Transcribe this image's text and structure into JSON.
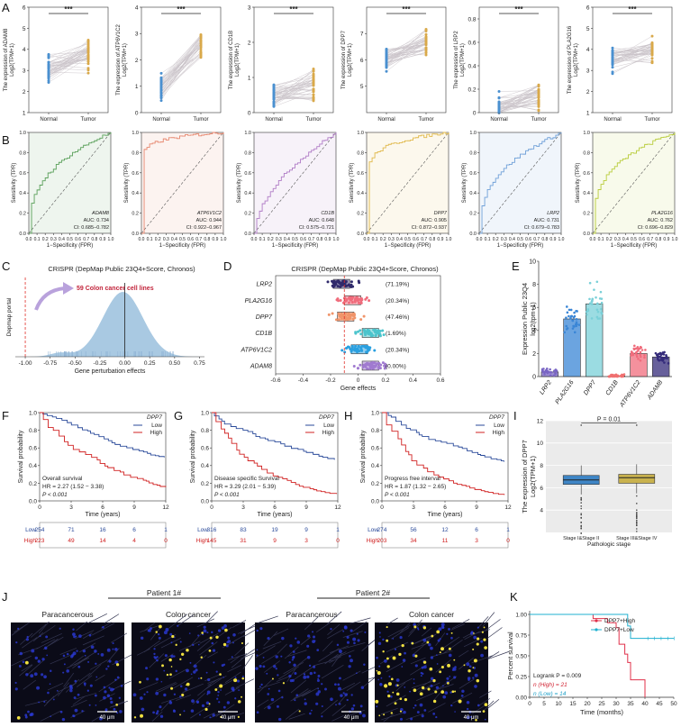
{
  "panels": {
    "a": "A",
    "b": "B",
    "c": "C",
    "d": "D",
    "e": "E",
    "f": "F",
    "g": "G",
    "h": "H",
    "i": "I",
    "j": "J",
    "k": "K"
  },
  "paired_genes": [
    "ADAM8",
    "ATP6V1C2",
    "CD1B",
    "DPP7",
    "LRP2",
    "PLA2G16"
  ],
  "text": {
    "expr_prefix": "The expression of",
    "log_tpm": "Log2(TPM+1)",
    "normal": "Normal",
    "tumor": "Tumor",
    "stars": "***",
    "sensitivity": "Sensitivity (TPR)",
    "fpr": "1−Specificity (FPR)",
    "crispr_title": "CRISPR (DepMap Public 23Q4+Score, Chronos)",
    "cell_lines": "59 Colon cancer cell lines",
    "depmap_portal": "Depmap portal",
    "gene_perturbation": "Gene perturbation effects",
    "gene_effects": "Gene effects",
    "expression_public": "Expression Public 23Q4",
    "log2tpm": "log2(tpm+1)",
    "survival_prob": "Survival probability",
    "time_years": "Time (years)",
    "dpp7": "DPP7",
    "low": "Low",
    "high": "High",
    "i_ylabel_1": "The expression of DPP7",
    "i_ylabel_2": "Log2(TPM+1)",
    "pathologic_stage": "Pathologic stage",
    "i_pvalue": "P = 0.01",
    "patient1": "Patient 1#",
    "patient2": "Patient 2#",
    "paracancerous": "Paracancerous",
    "colon_cancer": "Colon cancer",
    "scale_bar": "40 μm",
    "percent_survival": "Percent survival",
    "time_months": "Time (months)",
    "k_legend_high": "DPP7+High",
    "k_legend_low": "DPP7+Low",
    "k_logrank": "Logrank P = 0.009",
    "k_n_high": "n (High) = 21",
    "k_n_low": "n (Low) = 14"
  },
  "roc": [
    {
      "gene": "ADAM8",
      "auc": "AUC: 0.734",
      "ci": "CI: 0.685−0.782",
      "color": "#5aa05a"
    },
    {
      "gene": "ATP6V1C2",
      "auc": "AUC: 0.944",
      "ci": "CI: 0.922−0.967",
      "color": "#e6866e"
    },
    {
      "gene": "CD1B",
      "auc": "AUC: 0.648",
      "ci": "CI: 0.575−0.721",
      "color": "#b07cc6"
    },
    {
      "gene": "DPP7",
      "auc": "AUC: 0.905",
      "ci": "CI: 0.872−0.937",
      "color": "#e0b84a"
    },
    {
      "gene": "LRP2",
      "auc": "AUC: 0.731",
      "ci": "CI: 0.679−0.783",
      "color": "#6fa0d8"
    },
    {
      "gene": "PLA2G16",
      "auc": "AUC: 0.762",
      "ci": "CI: 0.696−0.829",
      "color": "#b8cc3a"
    }
  ],
  "d_rows": [
    {
      "gene": "LRP2",
      "pct": "(71.19%)",
      "color": "#2f2a6b"
    },
    {
      "gene": "PLA2G16",
      "pct": "(20.34%)",
      "color": "#f06c7c"
    },
    {
      "gene": "DPP7",
      "pct": "(47.46%)",
      "color": "#f0946a"
    },
    {
      "gene": "CD1B",
      "pct": "(1.69%)",
      "color": "#4bc4cc"
    },
    {
      "gene": "ATP6V1C2",
      "pct": "(20.34%)",
      "color": "#2aa0e0"
    },
    {
      "gene": "ADAM8",
      "pct": "(0.00%)",
      "color": "#a07ad0"
    }
  ],
  "survival": [
    {
      "panel": "F",
      "endpoint": "Overall survival",
      "hr": "HR = 2.27 (1.52 − 3.38)",
      "p": "P < 0.001",
      "low": [
        "254",
        "71",
        "16",
        "6",
        "1"
      ],
      "high": [
        "223",
        "49",
        "14",
        "4",
        "0"
      ]
    },
    {
      "panel": "G",
      "endpoint": "Disease specific Survival",
      "hr": "HR = 3.29 (2.01 − 5.39)",
      "p": "P < 0.001",
      "low": [
        "316",
        "83",
        "19",
        "9",
        "1"
      ],
      "high": [
        "145",
        "31",
        "9",
        "3",
        "0"
      ]
    },
    {
      "panel": "H",
      "endpoint": "Progress free interval",
      "hr": "HR = 1.87 (1.32 − 2.65)",
      "p": "P < 0.001",
      "low": [
        "274",
        "56",
        "12",
        "6",
        "1"
      ],
      "high": [
        "203",
        "34",
        "11",
        "3",
        "0"
      ]
    }
  ],
  "i_stages": [
    "Stage I&Stage II",
    "Stage III&Stage IV"
  ],
  "chart_data": [
    {
      "type": "scatter",
      "panel": "A",
      "title": "Paired expression Normal vs Tumor",
      "genes": [
        "ADAM8",
        "ATP6V1C2",
        "CD1B",
        "DPP7",
        "LRP2",
        "PLA2G16"
      ],
      "ylim": [
        [
          1,
          6
        ],
        [
          0,
          4
        ],
        [
          0,
          3
        ],
        [
          4,
          8
        ],
        [
          0,
          0.9
        ],
        [
          1,
          6
        ]
      ],
      "yticks": [
        [
          1,
          2,
          3,
          4,
          5,
          6
        ],
        [
          0,
          1,
          2,
          3,
          4
        ],
        [
          0,
          1,
          2,
          3
        ],
        [
          5,
          6,
          7
        ],
        [
          0,
          0.2,
          0.4,
          0.6,
          0.8
        ],
        [
          1,
          2,
          3,
          4,
          5,
          6
        ]
      ],
      "normal_center": [
        3.0,
        1.0,
        0.5,
        6.0,
        0.05,
        3.5
      ],
      "tumor_center": [
        3.8,
        2.5,
        0.8,
        6.6,
        0.15,
        3.9
      ]
    },
    {
      "type": "line",
      "panel": "B",
      "xlim": [
        0,
        1
      ],
      "ylim": [
        0,
        1
      ],
      "xticks": [
        0.0,
        0.1,
        0.2,
        0.3,
        0.4,
        0.5,
        0.6,
        0.7,
        0.8,
        0.9,
        1.0
      ],
      "yticks": [
        0.0,
        0.2,
        0.4,
        0.6,
        0.8,
        1.0
      ],
      "auc": [
        0.734,
        0.944,
        0.648,
        0.905,
        0.731,
        0.762
      ]
    },
    {
      "type": "area",
      "panel": "C",
      "xlim": [
        -1.1,
        0.8
      ],
      "xticks": [
        -1.0,
        -0.75,
        -0.5,
        -0.25,
        0.0,
        0.25,
        0.5,
        0.75
      ],
      "threshold": -1.0
    },
    {
      "type": "scatter",
      "panel": "D",
      "xlim": [
        -0.6,
        0.6
      ],
      "xticks": [
        -0.6,
        -0.4,
        -0.2,
        0,
        0.2,
        0.4,
        0.6
      ],
      "threshold": -0.1,
      "medians": [
        -0.12,
        -0.04,
        -0.09,
        0.09,
        0.01,
        0.09
      ]
    },
    {
      "type": "bar",
      "panel": "E",
      "categories": [
        "LRP2",
        "PLA2G16",
        "DPP7",
        "CD1B",
        "ATP6V1C2",
        "ADAM8"
      ],
      "values": [
        0.4,
        5.0,
        6.3,
        0.05,
        2.0,
        1.7
      ],
      "ylim": [
        0,
        10
      ],
      "yticks": [
        0,
        2,
        4,
        6,
        8,
        10
      ],
      "colors": [
        "#7a66c4",
        "#3a86d6",
        "#7ad0d8",
        "#f07070",
        "#f06c7c",
        "#342b7a"
      ]
    },
    {
      "type": "line",
      "panel": "F-H",
      "xlim": [
        0,
        12
      ],
      "xticks": [
        0,
        3,
        6,
        9,
        12
      ],
      "ylim": [
        0,
        1
      ],
      "yticks": [
        0.0,
        0.2,
        0.4,
        0.6,
        0.8,
        1.0
      ],
      "series": [
        {
          "name": "Low",
          "color": "#2a4a9a"
        },
        {
          "name": "High",
          "color": "#d02020"
        }
      ]
    },
    {
      "type": "bar",
      "panel": "I",
      "categories": [
        "Stage I&Stage II",
        "Stage III&Stage IV"
      ],
      "medians": [
        6.7,
        6.9
      ],
      "q1": [
        6.3,
        6.4
      ],
      "q3": [
        7.1,
        7.2
      ],
      "ylim": [
        2,
        12
      ],
      "yticks": [
        4,
        6,
        8,
        10,
        12
      ],
      "colors": [
        "#3f86c6",
        "#c9b24e"
      ]
    },
    {
      "type": "line",
      "panel": "K",
      "xlim": [
        0,
        50
      ],
      "xticks": [
        0,
        5,
        10,
        15,
        20,
        25,
        30,
        35,
        40,
        45,
        50
      ],
      "ylim": [
        0,
        1
      ],
      "yticks": [
        0.0,
        0.25,
        0.5,
        0.75,
        1.0
      ],
      "series": [
        {
          "name": "DPP7+High",
          "color": "#e0304a",
          "x": [
            0,
            22,
            27,
            30,
            31,
            33,
            34,
            35,
            40
          ],
          "y": [
            1.0,
            0.95,
            0.9,
            0.84,
            0.64,
            0.52,
            0.42,
            0.21,
            0.0
          ]
        },
        {
          "name": "DPP7+Low",
          "color": "#1fb0d0",
          "x": [
            0,
            34,
            35,
            50
          ],
          "y": [
            1.0,
            0.86,
            0.71,
            0.71
          ]
        }
      ]
    }
  ]
}
